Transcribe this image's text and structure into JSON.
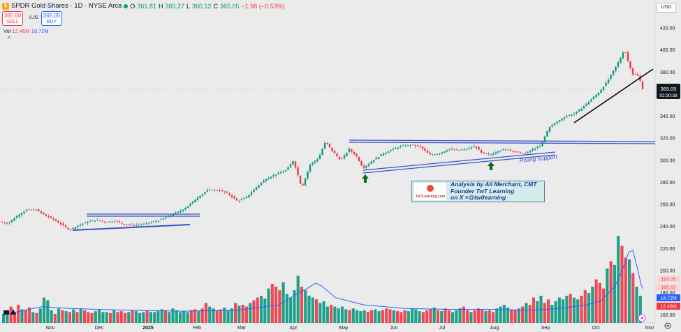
{
  "header": {
    "symbol_badge": "$",
    "title": "SPDR Gold Shares · 1D · NYSE Arca",
    "o_label": "O",
    "o_value": "361.81",
    "h_label": "H",
    "h_value": "365.27",
    "l_label": "L",
    "l_value": "360.12",
    "c_label": "C",
    "c_value": "365.05",
    "change": "−1.96 (−0.53%)"
  },
  "trade": {
    "sell_price": "365.00",
    "sell_label": "SELL",
    "spread": "0.05",
    "buy_price": "365.05",
    "buy_label": "BUY"
  },
  "volume_legend": {
    "label": "Vol",
    "volume": "12.46M",
    "ma": "18.72M"
  },
  "currency": "USD",
  "annotation": {
    "line1": "Analysis by Ali Merchant, CMT",
    "line2": "Founder TwT Learning",
    "line3": "on X =@twtlearning",
    "logo_text": "TwTLearning.com"
  },
  "chart_data": {
    "type": "candlestick",
    "ylim": [
      160,
      420
    ],
    "y_ticks": [
      "420.00",
      "400.00",
      "380.00",
      "340.00",
      "320.00",
      "300.00",
      "280.00",
      "260.00",
      "240.00",
      "220.00",
      "200.00",
      "180.00",
      "160.00"
    ],
    "x_ticks": [
      "Nov",
      "Dec",
      "2025",
      "Feb",
      "Mar",
      "Apr",
      "May",
      "Jun",
      "Jul",
      "Aug",
      "Sep",
      "Oct",
      "Nov"
    ],
    "last_price_label": "365.05",
    "countdown": "02:30:38",
    "volume_labels": [
      {
        "value": "193.05",
        "kind": "red"
      },
      {
        "value": "185.62",
        "kind": "pink"
      },
      {
        "value": "18.72M",
        "kind": "blue"
      },
      {
        "value": "12.46M",
        "kind": "red"
      }
    ],
    "price_anchors": [
      [
        0,
        244
      ],
      [
        12,
        243
      ],
      [
        25,
        250
      ],
      [
        38,
        255
      ],
      [
        52,
        255
      ],
      [
        65,
        250
      ],
      [
        78,
        246
      ],
      [
        92,
        240
      ],
      [
        100,
        237
      ],
      [
        112,
        241
      ],
      [
        125,
        244
      ],
      [
        138,
        246
      ],
      [
        152,
        244
      ],
      [
        165,
        245
      ],
      [
        178,
        242
      ],
      [
        192,
        241
      ],
      [
        205,
        242
      ],
      [
        218,
        244
      ],
      [
        230,
        246
      ],
      [
        244,
        250
      ],
      [
        258,
        254
      ],
      [
        270,
        259
      ],
      [
        284,
        267
      ],
      [
        298,
        273
      ],
      [
        312,
        273
      ],
      [
        326,
        270
      ],
      [
        340,
        263
      ],
      [
        352,
        266
      ],
      [
        366,
        275
      ],
      [
        380,
        283
      ],
      [
        394,
        287
      ],
      [
        410,
        291
      ],
      [
        420,
        300
      ],
      [
        432,
        275
      ],
      [
        444,
        296
      ],
      [
        456,
        302
      ],
      [
        466,
        317
      ],
      [
        476,
        308
      ],
      [
        488,
        300
      ],
      [
        500,
        310
      ],
      [
        510,
        304
      ],
      [
        520,
        293
      ],
      [
        534,
        300
      ],
      [
        548,
        306
      ],
      [
        562,
        310
      ],
      [
        575,
        313
      ],
      [
        590,
        314
      ],
      [
        602,
        312
      ],
      [
        615,
        305
      ],
      [
        628,
        306
      ],
      [
        642,
        310
      ],
      [
        655,
        309
      ],
      [
        668,
        310
      ],
      [
        680,
        313
      ],
      [
        690,
        306
      ],
      [
        702,
        305
      ],
      [
        714,
        309
      ],
      [
        727,
        310
      ],
      [
        740,
        307
      ],
      [
        752,
        306
      ],
      [
        763,
        310
      ],
      [
        774,
        313
      ],
      [
        786,
        330
      ],
      [
        798,
        335
      ],
      [
        810,
        340
      ],
      [
        822,
        342
      ],
      [
        834,
        348
      ],
      [
        846,
        355
      ],
      [
        858,
        362
      ],
      [
        870,
        372
      ],
      [
        880,
        383
      ],
      [
        888,
        392
      ],
      [
        894,
        401
      ],
      [
        900,
        388
      ],
      [
        906,
        378
      ],
      [
        912,
        378
      ],
      [
        918,
        370
      ],
      [
        920,
        365
      ]
    ],
    "volume_bars": [
      10,
      14,
      18,
      12,
      20,
      15,
      14,
      17,
      12,
      11,
      16,
      28,
      25,
      14,
      10,
      16,
      14,
      13,
      12,
      15,
      12,
      16,
      14,
      12,
      11,
      13,
      15,
      12,
      12,
      11,
      14,
      12,
      13,
      11,
      12,
      14,
      13,
      11,
      12,
      14,
      12,
      12,
      13,
      15,
      14,
      12,
      16,
      14,
      12,
      13,
      12,
      14,
      15,
      13,
      16,
      22,
      18,
      16,
      14,
      15,
      17,
      14,
      16,
      22,
      19,
      20,
      18,
      22,
      25,
      28,
      30,
      27,
      38,
      43,
      40,
      36,
      45,
      32,
      28,
      36,
      52,
      40,
      36,
      30,
      28,
      26,
      22,
      24,
      18,
      20,
      18,
      16,
      18,
      15,
      14,
      16,
      14,
      13,
      14,
      12,
      14,
      15,
      13,
      14,
      16,
      15,
      14,
      13,
      12,
      14,
      13,
      16,
      15,
      13,
      12,
      14,
      15,
      17,
      14,
      13,
      16,
      14,
      12,
      14,
      16,
      18,
      14,
      12,
      14,
      16,
      15,
      13,
      14,
      12,
      16,
      18,
      20,
      17,
      15,
      14,
      16,
      18,
      22,
      20,
      28,
      24,
      30,
      22,
      26,
      20,
      24,
      28,
      26,
      30,
      32,
      28,
      26,
      30,
      36,
      33,
      40,
      48,
      44,
      38,
      60,
      68,
      64,
      96,
      85,
      72,
      70,
      55,
      40,
      30
    ],
    "volume_ma": [
      [
        5,
        9
      ],
      [
        60,
        18
      ],
      [
        100,
        16
      ],
      [
        180,
        14
      ],
      [
        260,
        13
      ],
      [
        340,
        14
      ],
      [
        400,
        20
      ],
      [
        420,
        30
      ],
      [
        440,
        38
      ],
      [
        452,
        44
      ],
      [
        462,
        40
      ],
      [
        480,
        28
      ],
      [
        520,
        20
      ],
      [
        580,
        16
      ],
      [
        640,
        15
      ],
      [
        700,
        15
      ],
      [
        760,
        14
      ],
      [
        800,
        16
      ],
      [
        840,
        20
      ],
      [
        860,
        24
      ],
      [
        880,
        40
      ],
      [
        892,
        60
      ],
      [
        900,
        78
      ],
      [
        906,
        80
      ],
      [
        912,
        62
      ],
      [
        918,
        42
      ],
      [
        920,
        38
      ]
    ]
  }
}
